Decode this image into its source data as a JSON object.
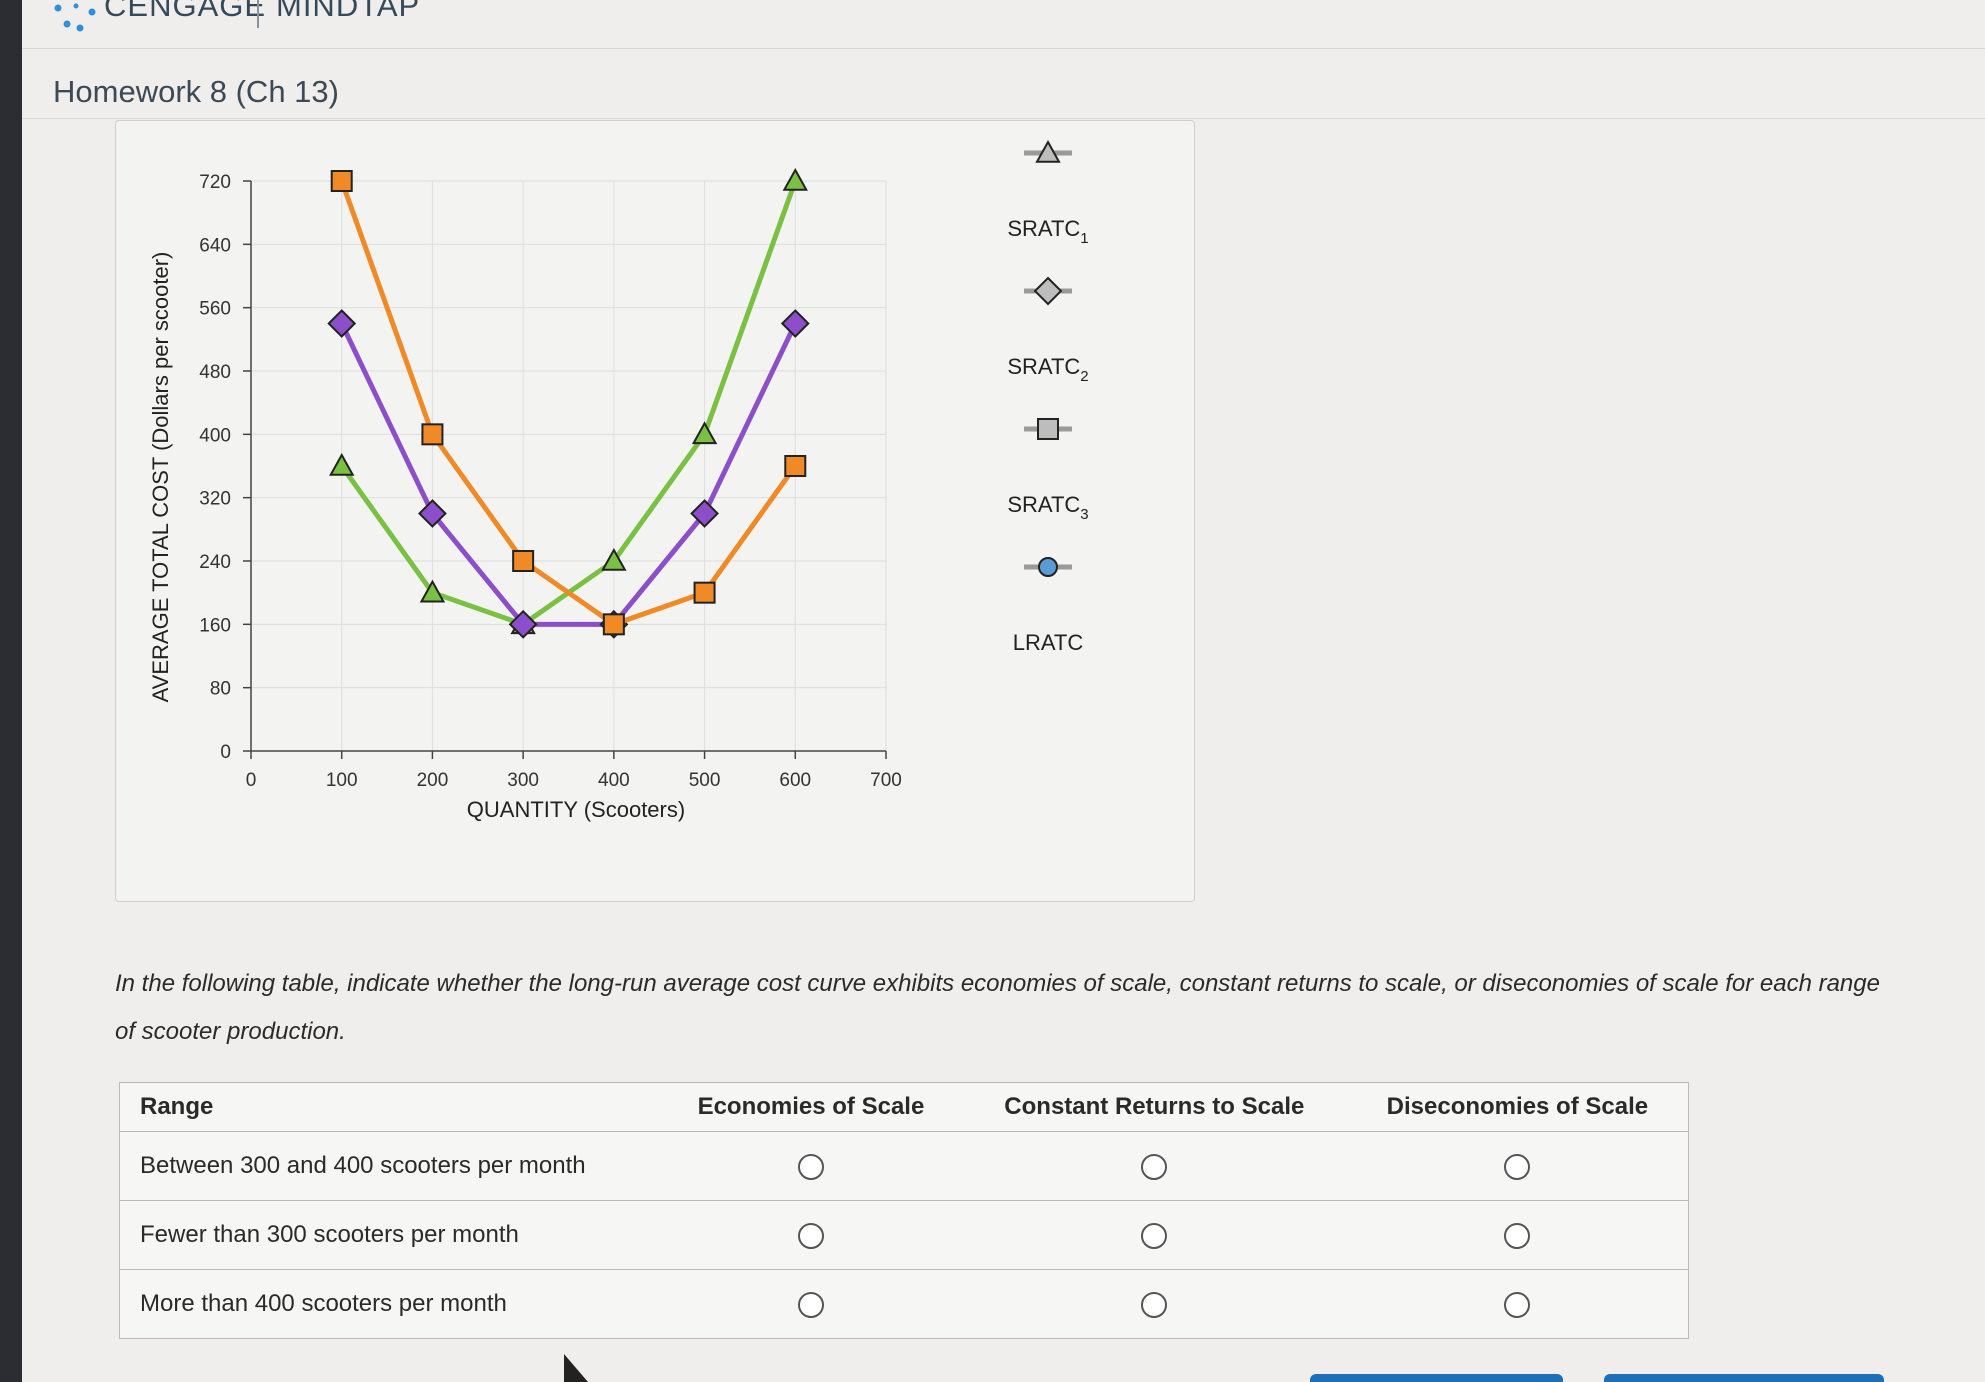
{
  "brand": {
    "name": "CENGAGE",
    "product": "MINDTAP"
  },
  "page": {
    "title": "Homework 8 (Ch 13)"
  },
  "chart_data": {
    "type": "line",
    "xlabel": "QUANTITY (Scooters)",
    "ylabel": "AVERAGE TOTAL COST (Dollars per scooter)",
    "xlim": [
      0,
      700
    ],
    "ylim": [
      0,
      720
    ],
    "xticks": [
      "0",
      "100",
      "200",
      "300",
      "400",
      "500",
      "600",
      "700"
    ],
    "yticks": [
      "0",
      "80",
      "160",
      "240",
      "320",
      "400",
      "480",
      "560",
      "640",
      "720"
    ],
    "grid": true,
    "legend_position": "right",
    "series": [
      {
        "name": "SRATC1",
        "marker": "triangle",
        "color": "#7ac143",
        "x": [
          100,
          200,
          300,
          400,
          500,
          600
        ],
        "y": [
          360,
          200,
          160,
          240,
          400,
          720
        ]
      },
      {
        "name": "SRATC2",
        "marker": "diamond",
        "color": "#8c4fc9",
        "x": [
          100,
          200,
          300,
          400,
          500,
          600
        ],
        "y": [
          540,
          300,
          160,
          160,
          300,
          540
        ]
      },
      {
        "name": "SRATC3",
        "marker": "square",
        "color": "#ef8a27",
        "x": [
          100,
          200,
          300,
          400,
          500,
          600
        ],
        "y": [
          720,
          400,
          240,
          160,
          200,
          360
        ]
      },
      {
        "name": "LRATC",
        "marker": "circle",
        "color": "#5b9bd5",
        "x": [],
        "y": []
      }
    ]
  },
  "legend": {
    "items": [
      {
        "base": "SRATC",
        "sub": "1"
      },
      {
        "base": "SRATC",
        "sub": "2"
      },
      {
        "base": "SRATC",
        "sub": "3"
      },
      {
        "base": "LRATC",
        "sub": ""
      }
    ]
  },
  "question": {
    "prompt": "In the following table, indicate whether the long-run average cost curve exhibits economies of scale, constant returns to scale, or diseconomies of scale for each range of scooter production.",
    "headers": [
      "Range",
      "Economies of Scale",
      "Constant Returns to Scale",
      "Diseconomies of Scale"
    ],
    "rows": [
      {
        "range": "Between 300 and 400 scooters per month"
      },
      {
        "range": "Fewer than 300 scooters per month"
      },
      {
        "range": "More than 400 scooters per month"
      }
    ]
  },
  "colors": {
    "accent": "#1e6fb8",
    "brand_icon": "#2f8fd8"
  }
}
